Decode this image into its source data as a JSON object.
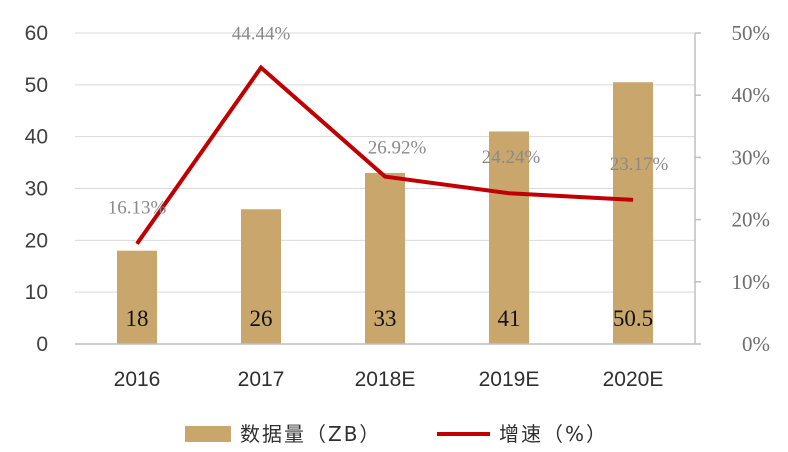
{
  "chart_data": {
    "type": "bar",
    "categories": [
      "2016",
      "2017",
      "2018E",
      "2019E",
      "2020E"
    ],
    "series": [
      {
        "name": "数据量（ZB）",
        "type": "bar",
        "axis": "left",
        "values": [
          18,
          26,
          33,
          41,
          50.5
        ],
        "labels": [
          "18",
          "26",
          "33",
          "41",
          "50.5"
        ],
        "color": "#c9a76c"
      },
      {
        "name": "增速（%）",
        "type": "line",
        "axis": "right",
        "values": [
          16.13,
          44.44,
          26.92,
          24.24,
          23.17
        ],
        "labels": [
          "16.13%",
          "44.44%",
          "26.92%",
          "24.24%",
          "23.17%"
        ],
        "color": "#c00000"
      }
    ],
    "y_left": {
      "ylim": [
        0,
        60
      ],
      "ticks": [
        "0",
        "10",
        "20",
        "30",
        "40",
        "50",
        "60"
      ]
    },
    "y_right": {
      "ylim": [
        0,
        50
      ],
      "ticks": [
        "0%",
        "10%",
        "20%",
        "30%",
        "40%",
        "50%"
      ]
    },
    "grid": true,
    "legend": {
      "position": "bottom"
    }
  }
}
